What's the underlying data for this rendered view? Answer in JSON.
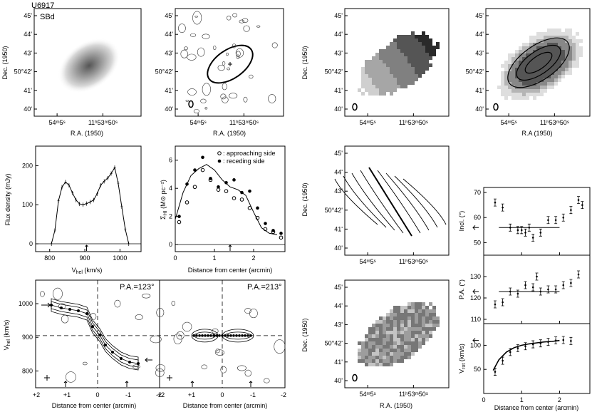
{
  "galaxy_id": "U6917",
  "morph_type": "SBd",
  "axis": {
    "dec_1950": "Dec. (1950)",
    "ra_1950": "R.A. (1950)",
    "ra_1950_alt": "R.A (1950)",
    "flux_density": "Flux density (mJy)",
    "vhel": "V",
    "vhel_sub": "hel",
    "vhel_unit": " (km/s)",
    "vhel_kms": "V",
    "surf_dens": "Σ",
    "surf_dens_sub": "HI",
    "surf_dens_unit": " (M⊙ pc⁻²)",
    "distance_arcmin": "Distance from center (arcmin)",
    "incl": "Incl. (°)",
    "pa": "P.A. (°)",
    "vrot": "V",
    "vrot_sub": "rot",
    "vrot_unit": " (km/s)"
  },
  "dec_ticks": [
    "45'",
    "44'",
    "43'",
    "50°42'",
    "41'",
    "40'"
  ],
  "ra_ticks": [
    "54ᵐ5ˢ",
    "11ʰ53ᵐ50ˢ"
  ],
  "pv": {
    "label_left": "P.A.=123°",
    "label_right": "P.A.=213°",
    "v_ticks": [
      "1000",
      "900",
      "800"
    ],
    "x_ticks": [
      "+2",
      "+1",
      "0",
      "-1",
      "-2"
    ]
  },
  "legend": {
    "approaching": ": approaching side",
    "receding": ": receding side"
  },
  "chart_data": [
    {
      "type": "line",
      "title": "",
      "xlabel": "V_hel (km/s)",
      "ylabel": "Flux density (mJy)",
      "xlim": [
        760,
        1060
      ],
      "ylim": [
        -20,
        250
      ],
      "x_ticks": [
        "800",
        "900",
        "1000"
      ],
      "y_ticks": [
        "0",
        "100",
        "200"
      ],
      "x": [
        805,
        815,
        825,
        835,
        845,
        855,
        865,
        875,
        885,
        895,
        905,
        915,
        925,
        935,
        945,
        955,
        965,
        975,
        985,
        995,
        1005,
        1015,
        1025
      ],
      "y": [
        0,
        35,
        110,
        145,
        158,
        150,
        130,
        112,
        102,
        100,
        103,
        107,
        112,
        128,
        150,
        160,
        168,
        180,
        195,
        155,
        95,
        38,
        0
      ]
    },
    {
      "type": "line",
      "title": "",
      "xlabel": "Distance from center (arcmin)",
      "ylabel": "Σ_HI (M⊙ pc⁻²)",
      "xlim": [
        0,
        2.8
      ],
      "ylim": [
        -0.5,
        7
      ],
      "x_ticks": [
        "0",
        "1",
        "2"
      ],
      "y_ticks": [
        "0",
        "2",
        "4",
        "6"
      ],
      "model_x": [
        0.0,
        0.2,
        0.4,
        0.6,
        0.8,
        1.0,
        1.2,
        1.4,
        1.6,
        1.8,
        2.0,
        2.2,
        2.4,
        2.6
      ],
      "model_y": [
        1.8,
        3.7,
        4.9,
        5.4,
        5.7,
        5.3,
        4.6,
        4.1,
        3.9,
        3.5,
        2.3,
        1.2,
        0.8,
        0.7
      ],
      "approaching_x": [
        0.1,
        0.3,
        0.5,
        0.7,
        0.9,
        1.1,
        1.3,
        1.5,
        1.7,
        1.9,
        2.1,
        2.3,
        2.5,
        2.7
      ],
      "approaching_y": [
        1.6,
        3.0,
        4.1,
        5.3,
        4.6,
        3.9,
        3.8,
        3.3,
        3.2,
        2.6,
        1.9,
        1.1,
        0.9,
        0.5
      ],
      "receding_x": [
        0.1,
        0.3,
        0.5,
        0.7,
        0.9,
        1.1,
        1.3,
        1.5,
        1.7,
        1.9,
        2.1,
        2.3,
        2.5,
        2.7
      ],
      "receding_y": [
        2.0,
        4.3,
        5.3,
        6.2,
        4.7,
        4.1,
        4.4,
        4.6,
        3.7,
        3.8,
        2.6,
        1.5,
        1.0,
        0.8
      ]
    },
    {
      "type": "scatter",
      "title": "",
      "xlabel": "",
      "ylabel": "Incl. (°)",
      "xlim": [
        0,
        2.8
      ],
      "ylim": [
        45,
        72
      ],
      "y_ticks": [
        "50",
        "60",
        "70"
      ],
      "fit_value": 56,
      "x": [
        0.3,
        0.5,
        0.7,
        0.9,
        1.0,
        1.1,
        1.2,
        1.3,
        1.5,
        1.7,
        1.9,
        2.1,
        2.3,
        2.5,
        2.6
      ],
      "y": [
        66,
        64,
        56,
        55,
        55,
        54,
        56,
        52,
        54,
        59,
        59,
        60,
        63,
        67,
        65
      ]
    },
    {
      "type": "scatter",
      "title": "",
      "xlabel": "",
      "ylabel": "P.A. (°)",
      "xlim": [
        0,
        2.8
      ],
      "ylim": [
        108,
        140
      ],
      "y_ticks": [
        "110",
        "120",
        "130"
      ],
      "fit_value": 123,
      "x": [
        0.3,
        0.5,
        0.7,
        0.9,
        1.1,
        1.3,
        1.4,
        1.5,
        1.7,
        1.9,
        2.1,
        2.3,
        2.5
      ],
      "y": [
        117,
        118,
        123,
        122,
        126,
        125,
        130,
        123,
        124,
        124,
        126,
        127,
        131
      ]
    },
    {
      "type": "scatter",
      "title": "",
      "xlabel": "Distance from center (arcmin)",
      "ylabel": "V_rot (km/s)",
      "xlim": [
        0,
        2.8
      ],
      "ylim": [
        0,
        145
      ],
      "x_ticks": [
        "0",
        "1",
        "2"
      ],
      "y_ticks": [
        "50",
        "100"
      ],
      "curve_x": [
        0.25,
        0.4,
        0.6,
        0.8,
        1.0,
        1.2,
        1.4,
        1.6,
        1.8,
        2.0
      ],
      "curve_y": [
        48,
        70,
        86,
        95,
        100,
        103,
        105,
        107,
        108,
        110
      ],
      "x": [
        0.3,
        0.5,
        0.7,
        0.9,
        1.1,
        1.3,
        1.5,
        1.7,
        1.9,
        2.1,
        2.3
      ],
      "y": [
        45,
        68,
        86,
        94,
        98,
        102,
        104,
        107,
        110,
        111,
        109
      ]
    }
  ]
}
